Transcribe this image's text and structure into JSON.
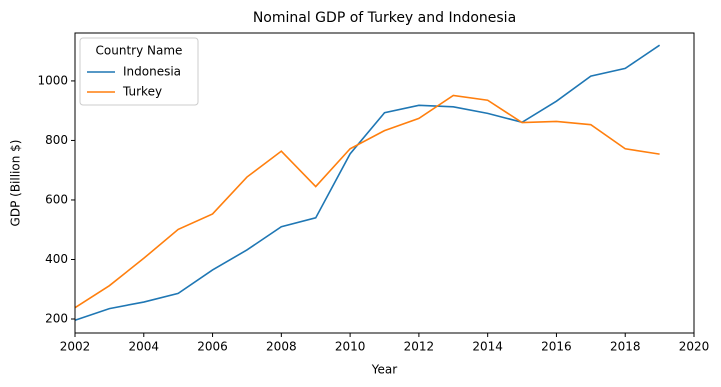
{
  "chart_data": {
    "type": "line",
    "title": "Nominal GDP of Turkey and Indonesia",
    "x_label": "Year",
    "y_label": "GDP (Billion $)",
    "x": [
      2002,
      2003,
      2004,
      2005,
      2006,
      2007,
      2008,
      2009,
      2010,
      2011,
      2012,
      2013,
      2014,
      2015,
      2016,
      2017,
      2018,
      2019
    ],
    "series": [
      {
        "name": "Indonesia",
        "color": "#1f77b4",
        "values": [
          196,
          235,
          257,
          286,
          365,
          432,
          510,
          540,
          755,
          893,
          918,
          913,
          891,
          861,
          932,
          1016,
          1042,
          1120
        ]
      },
      {
        "name": "Turkey",
        "color": "#ff7f0e",
        "values": [
          238,
          312,
          404,
          501,
          553,
          677,
          764,
          645,
          772,
          833,
          874,
          951,
          935,
          860,
          864,
          853,
          772,
          754
        ]
      }
    ],
    "xlim": [
      2002,
      2020
    ],
    "xticks": [
      2002,
      2004,
      2006,
      2008,
      2010,
      2012,
      2014,
      2016,
      2018,
      2020
    ],
    "ylim": [
      153,
      1161
    ],
    "yticks": [
      200,
      400,
      600,
      800,
      1000
    ],
    "legend_title": "Country Name",
    "legend": "upper left",
    "grid": false
  }
}
